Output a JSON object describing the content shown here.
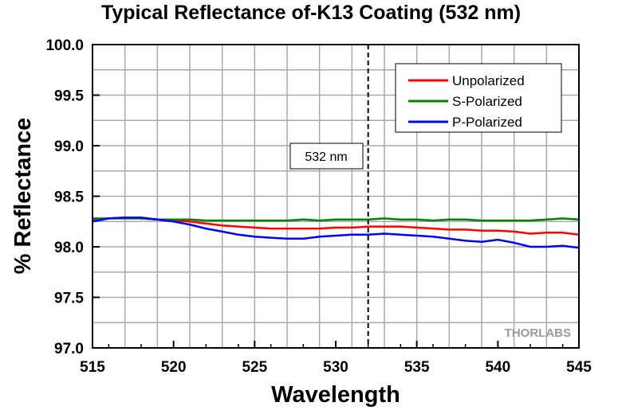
{
  "chart_data": {
    "type": "line",
    "title": "Typical Reflectance of-K13 Coating (532 nm)",
    "xlabel": "Wavelength",
    "ylabel": "% Reflectance",
    "xlim": [
      515,
      545
    ],
    "ylim": [
      97.0,
      100.0
    ],
    "xticks": [
      "515",
      "520",
      "525",
      "530",
      "535",
      "540",
      "545"
    ],
    "yticks": [
      "97.0",
      "97.5",
      "98.0",
      "98.5",
      "99.0",
      "99.5",
      "100.0"
    ],
    "grid": true,
    "legend_position": "top-right",
    "series": [
      {
        "name": "Unpolarized",
        "color": "#ff0000",
        "x": [
          515,
          516,
          517,
          518,
          519,
          520,
          521,
          522,
          523,
          524,
          525,
          526,
          527,
          528,
          529,
          530,
          531,
          532,
          533,
          534,
          535,
          536,
          537,
          538,
          539,
          540,
          541,
          542,
          543,
          544,
          545
        ],
        "y": [
          98.26,
          98.28,
          98.29,
          98.28,
          98.27,
          98.26,
          98.25,
          98.23,
          98.21,
          98.2,
          98.19,
          98.18,
          98.18,
          98.18,
          98.18,
          98.19,
          98.19,
          98.2,
          98.2,
          98.2,
          98.19,
          98.18,
          98.17,
          98.17,
          98.16,
          98.16,
          98.15,
          98.13,
          98.14,
          98.14,
          98.12
        ]
      },
      {
        "name": "S-Polarized",
        "color": "#008000",
        "x": [
          515,
          516,
          517,
          518,
          519,
          520,
          521,
          522,
          523,
          524,
          525,
          526,
          527,
          528,
          529,
          530,
          531,
          532,
          533,
          534,
          535,
          536,
          537,
          538,
          539,
          540,
          541,
          542,
          543,
          544,
          545
        ],
        "y": [
          98.28,
          98.28,
          98.28,
          98.28,
          98.27,
          98.27,
          98.27,
          98.26,
          98.26,
          98.26,
          98.26,
          98.26,
          98.26,
          98.27,
          98.26,
          98.27,
          98.27,
          98.27,
          98.28,
          98.27,
          98.27,
          98.26,
          98.27,
          98.27,
          98.26,
          98.26,
          98.26,
          98.26,
          98.27,
          98.28,
          98.27
        ]
      },
      {
        "name": "P-Polarized",
        "color": "#0000ff",
        "x": [
          515,
          516,
          517,
          518,
          519,
          520,
          521,
          522,
          523,
          524,
          525,
          526,
          527,
          528,
          529,
          530,
          531,
          532,
          533,
          534,
          535,
          536,
          537,
          538,
          539,
          540,
          541,
          542,
          543,
          544,
          545
        ],
        "y": [
          98.25,
          98.28,
          98.29,
          98.29,
          98.27,
          98.25,
          98.22,
          98.18,
          98.15,
          98.12,
          98.1,
          98.09,
          98.08,
          98.08,
          98.1,
          98.11,
          98.12,
          98.12,
          98.13,
          98.12,
          98.11,
          98.1,
          98.08,
          98.06,
          98.05,
          98.07,
          98.04,
          98.0,
          98.0,
          98.01,
          97.99
        ]
      }
    ],
    "annotations": [
      {
        "type": "vline",
        "x": 532,
        "style": "dashed",
        "label": "532 nm"
      }
    ],
    "logo": "THORLABS"
  }
}
